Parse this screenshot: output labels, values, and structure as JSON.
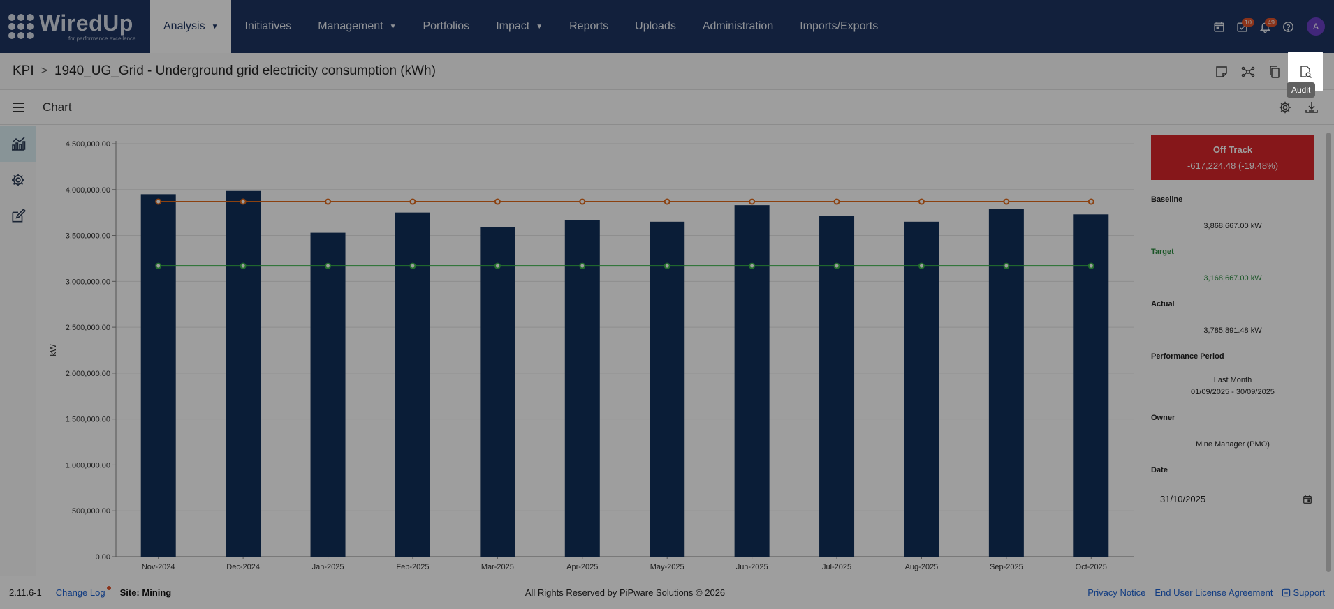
{
  "colors": {
    "nav_bg": "#1d3461",
    "bar": "#11305a",
    "baseline_line": "#e0691b",
    "target_line": "#3ab54a",
    "status_off_track": "#d9262a",
    "link": "#1a5fd0"
  },
  "brand": {
    "name": "WiredUp",
    "tagline": "for performance excellence"
  },
  "nav": {
    "items": [
      {
        "label": "Analysis",
        "has_caret": true,
        "active": true
      },
      {
        "label": "Initiatives",
        "has_caret": false
      },
      {
        "label": "Management",
        "has_caret": true
      },
      {
        "label": "Portfolios",
        "has_caret": false
      },
      {
        "label": "Impact",
        "has_caret": true
      },
      {
        "label": "Reports",
        "has_caret": false
      },
      {
        "label": "Uploads",
        "has_caret": false
      },
      {
        "label": "Administration",
        "has_caret": false
      },
      {
        "label": "Imports/Exports",
        "has_caret": false
      }
    ],
    "icons": [
      "calendar-icon",
      "task-check-icon",
      "bell-icon",
      "help-icon"
    ],
    "tasks_badge": "10",
    "notifications_badge": "49",
    "avatar_initial": "A",
    "caret_glyph": "▼"
  },
  "breadcrumb": {
    "root": "KPI",
    "separator": ">",
    "title": "1940_UG_Grid - Underground grid electricity consumption (kWh)",
    "actions": [
      "note-icon",
      "network-icon",
      "copy-icon",
      "audit-icon"
    ],
    "tooltip": "Audit"
  },
  "chart_panel": {
    "title": "Chart",
    "actions": [
      "settings-icon",
      "download-icon"
    ]
  },
  "rail": [
    "chart-icon",
    "settings-icon",
    "edit-icon"
  ],
  "chart_data": {
    "type": "bar",
    "ylabel": "kW",
    "xlabel": "",
    "ylim": [
      0,
      4500000
    ],
    "ytick_step": 500000,
    "ytick_labels": [
      "0.00",
      "500,000.00",
      "1,000,000.00",
      "1,500,000.00",
      "2,000,000.00",
      "2,500,000.00",
      "3,000,000.00",
      "3,500,000.00",
      "4,000,000.00",
      "4,500,000.00"
    ],
    "grid": true,
    "categories": [
      "Nov-2024",
      "Dec-2024",
      "Jan-2025",
      "Feb-2025",
      "Mar-2025",
      "Apr-2025",
      "May-2025",
      "Jun-2025",
      "Jul-2025",
      "Aug-2025",
      "Sep-2025",
      "Oct-2025"
    ],
    "series": [
      {
        "type": "bar",
        "values": [
          3950000,
          3985000,
          3530000,
          3750000,
          3590000,
          3670000,
          3650000,
          3830000,
          3710000,
          3650000,
          3785891.48,
          3730000
        ]
      },
      {
        "type": "line",
        "values": [
          3868667,
          3868667,
          3868667,
          3868667,
          3868667,
          3868667,
          3868667,
          3868667,
          3868667,
          3868667,
          3868667,
          3868667
        ]
      },
      {
        "type": "line",
        "values": [
          3168667,
          3168667,
          3168667,
          3168667,
          3168667,
          3168667,
          3168667,
          3168667,
          3168667,
          3168667,
          3168667,
          3168667
        ]
      }
    ]
  },
  "summary": {
    "status": "Off Track",
    "variance": "-617,224.48 (-19.48%)",
    "baseline_label": "Baseline",
    "baseline_value": "3,868,667.00 kW",
    "target_label": "Target",
    "target_value": "3,168,667.00 kW",
    "actual_label": "Actual",
    "actual_value": "3,785,891.48 kW",
    "period_label": "Performance Period",
    "period_name": "Last Month",
    "period_range": "01/09/2025 - 30/09/2025",
    "owner_label": "Owner",
    "owner_value": "Mine Manager (PMO)",
    "date_label": "Date",
    "date_value": "31/10/2025"
  },
  "footer": {
    "version": "2.11.6-1",
    "changelog": "Change Log",
    "site": "Site: Mining",
    "copyright": "All Rights Reserved by PiPware Solutions © 2026",
    "privacy": "Privacy Notice",
    "eula": "End User License Agreement",
    "support": "Support"
  }
}
